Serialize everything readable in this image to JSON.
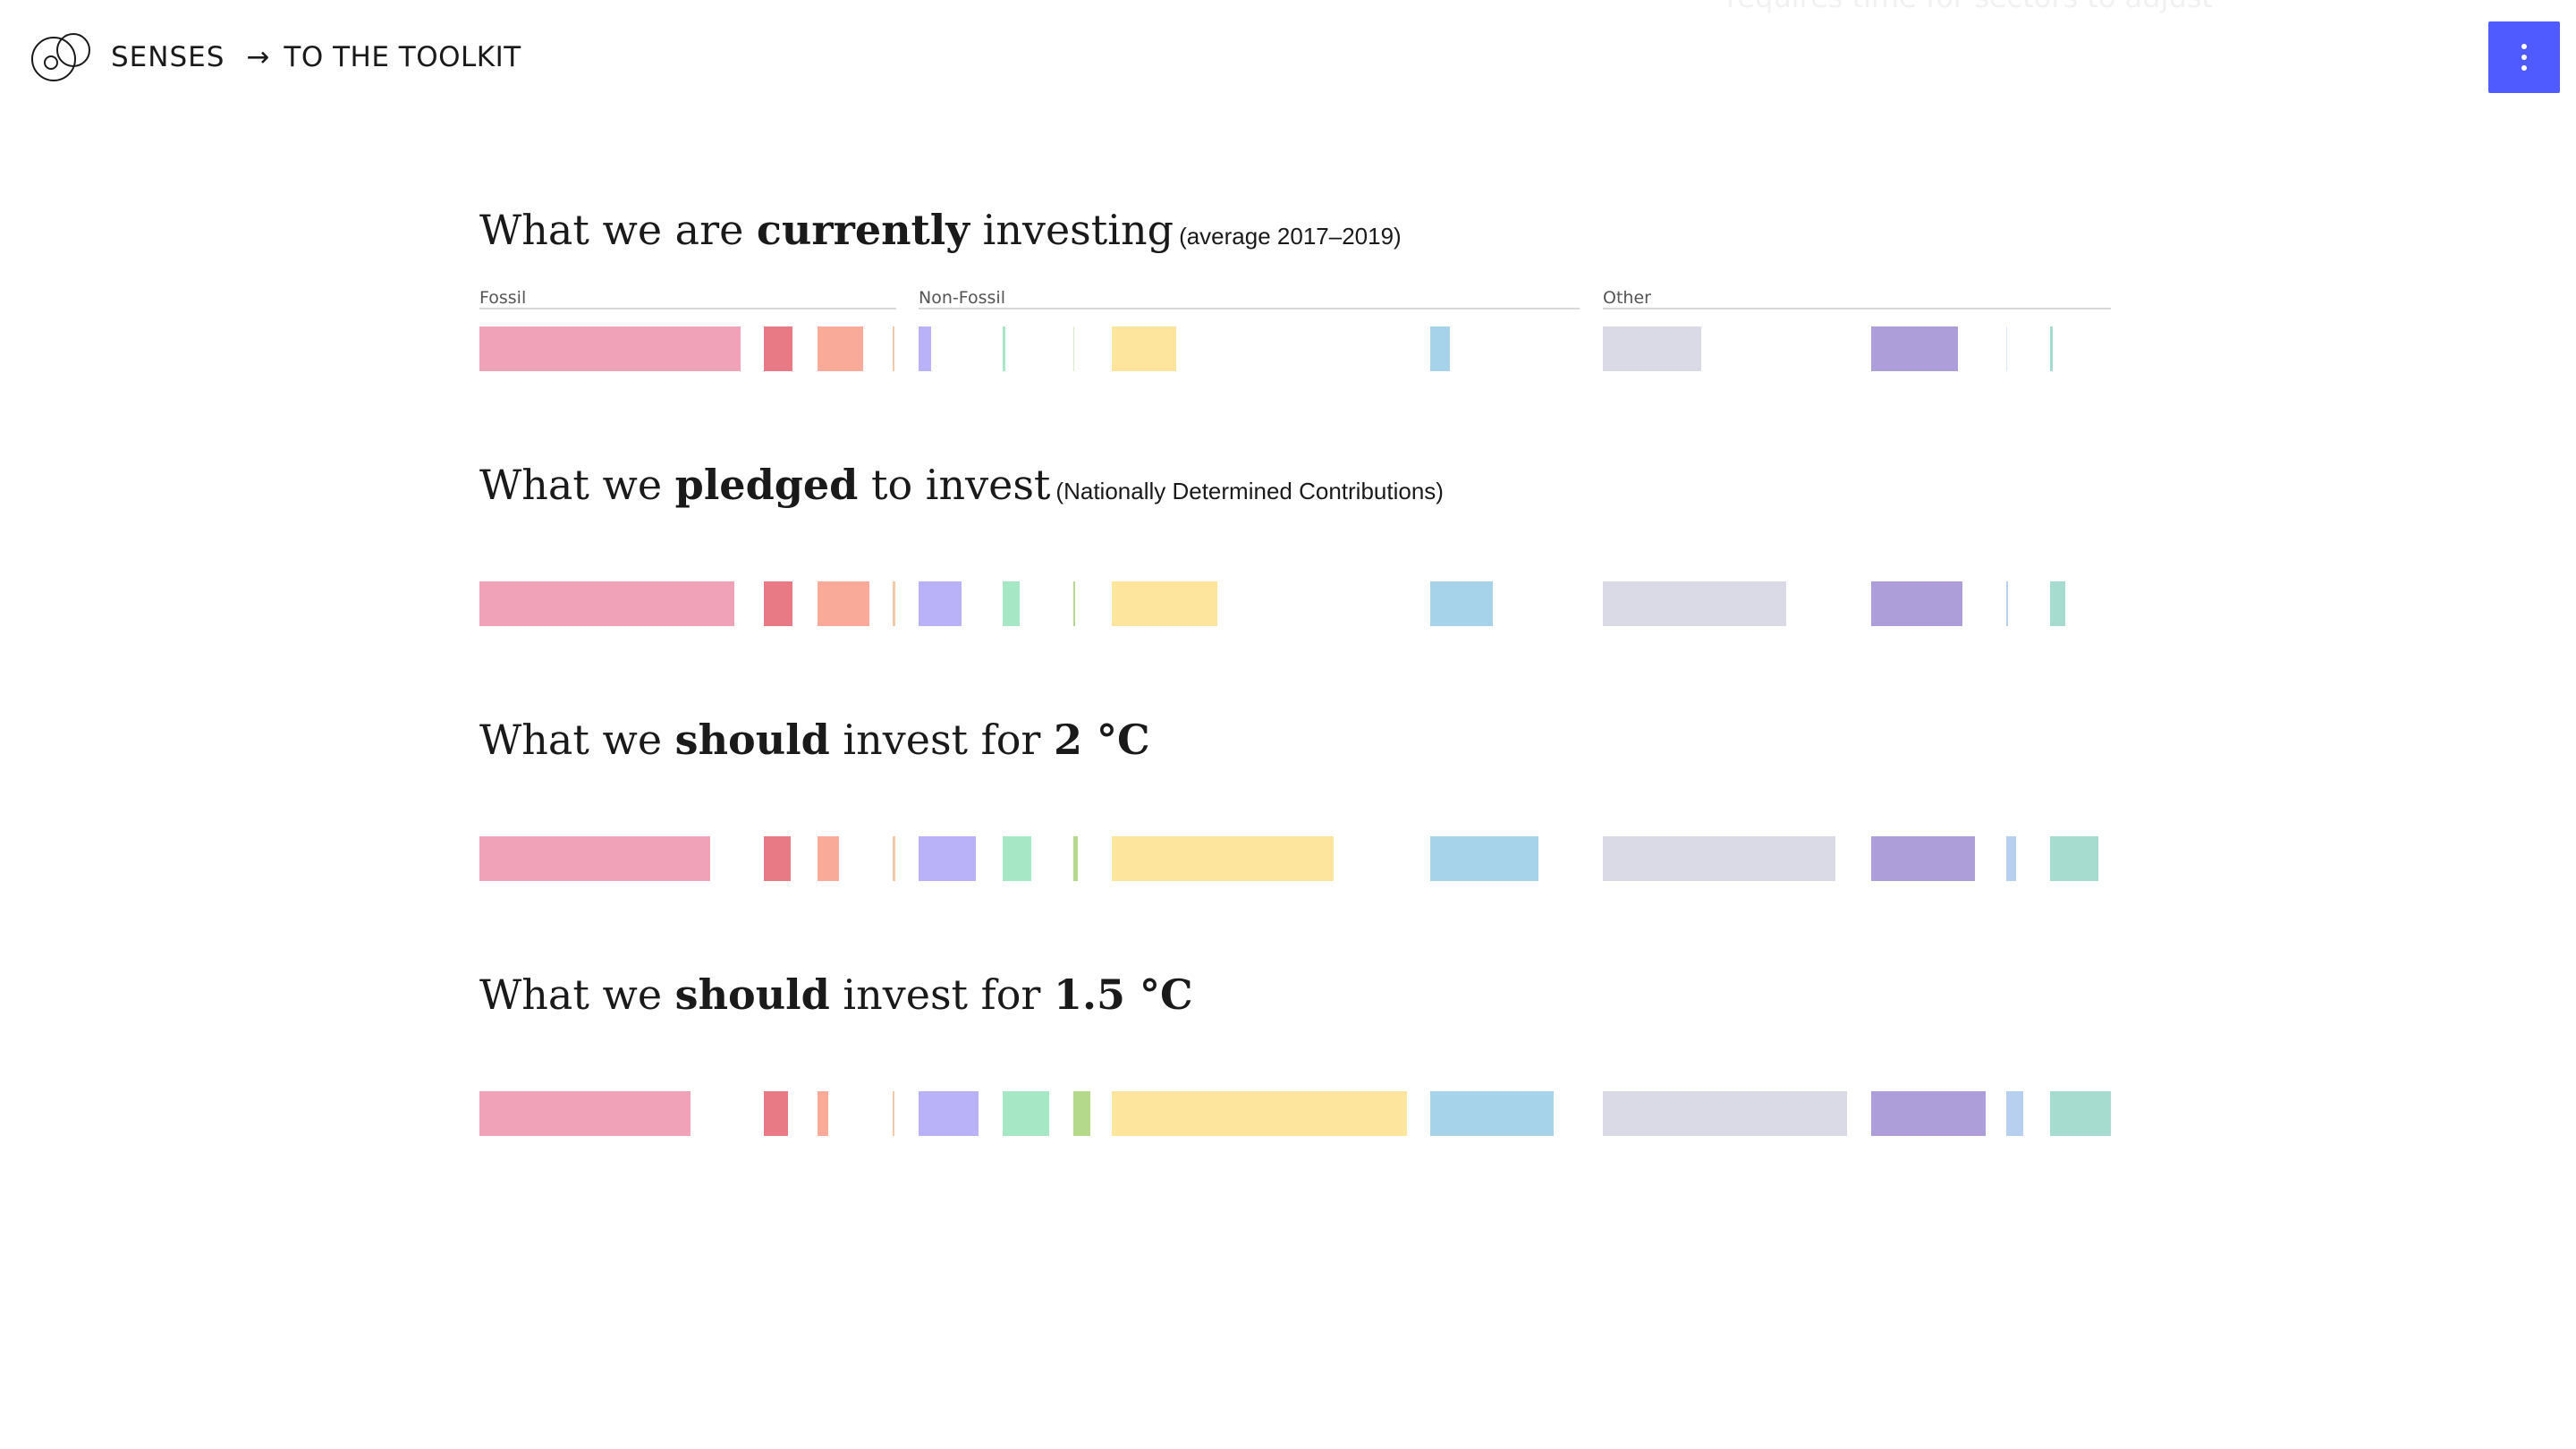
{
  "header": {
    "brand": "SENSES",
    "arrow": "→",
    "toolkit_link": "TO THE TOOLKIT",
    "faded_text": "requires time for sectors to adjust"
  },
  "groups": [
    {
      "label": "Fossil"
    },
    {
      "label": "Non-Fossil"
    },
    {
      "label": "Other"
    }
  ],
  "sections": [
    {
      "pre": "What we are ",
      "bold": "currently",
      "post": " investing",
      "note": "(average 2017–2019)"
    },
    {
      "pre": "What we ",
      "bold": "pledged",
      "post": " to invest",
      "note": "(Nationally Determined Contributions)"
    },
    {
      "pre": "What we ",
      "bold": "should",
      "post": " invest for ",
      "bold2": "2 °C",
      "note": ""
    },
    {
      "pre": "What we ",
      "bold": "should",
      "post": " invest for ",
      "bold2": "1.5 °C",
      "note": ""
    }
  ],
  "colors": {
    "accent": "#4f5bff",
    "categories": [
      "#f0a3b8",
      "#e87a86",
      "#f9aa99",
      "#f5c9a8",
      "#b9b2f9",
      "#a6e8c5",
      "#b5d98a",
      "#fde59e",
      "#a6d2ea",
      "#dadae6",
      "#ad9ed9",
      "#b7d0ef",
      "#a6dcd0"
    ]
  },
  "chart_data": {
    "type": "bar",
    "categories": [
      "c1",
      "c2",
      "c3",
      "c4",
      "c5",
      "c6",
      "c7",
      "c8",
      "c9",
      "c10",
      "c11",
      "c12",
      "c13"
    ],
    "series": [
      {
        "values": [
          292,
          32,
          51,
          2,
          14,
          3,
          0,
          72,
          22,
          110,
          97,
          0,
          3
        ]
      },
      {
        "values": [
          285,
          32,
          58,
          3,
          48,
          19,
          2,
          118,
          70,
          205,
          102,
          2,
          17
        ]
      },
      {
        "values": [
          258,
          30,
          24,
          3,
          64,
          32,
          5,
          248,
          121,
          260,
          116,
          11,
          54
        ]
      },
      {
        "values": [
          236,
          27,
          12,
          2,
          67,
          52,
          19,
          330,
          138,
          273,
          128,
          19,
          69
        ]
      }
    ]
  }
}
